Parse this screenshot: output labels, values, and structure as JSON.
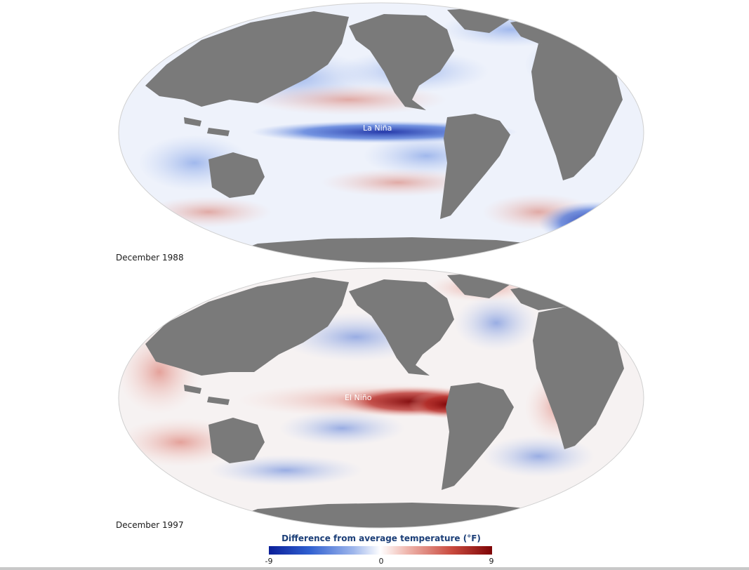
{
  "maps": [
    {
      "date": "December 1988",
      "annotation": "La Niña"
    },
    {
      "date": "December 1997",
      "annotation": "El Niño"
    }
  ],
  "legend": {
    "title": "Difference from average temperature (°F)",
    "min": "-9",
    "mid": "0",
    "max": "9",
    "colors": {
      "cold": "#0b1f99",
      "neutral": "#ffffff",
      "warm": "#7e0406"
    }
  },
  "colors": {
    "land": "#7a7a7a",
    "ocean_base": "#f4f6fb"
  }
}
